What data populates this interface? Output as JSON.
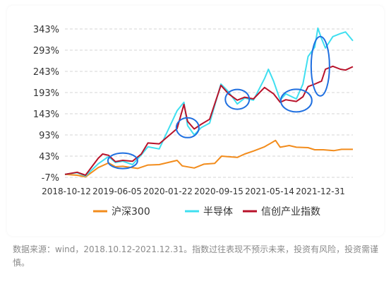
{
  "chart_data": {
    "type": "line",
    "y_ticks": [
      "343%",
      "293%",
      "243%",
      "193%",
      "143%",
      "93%",
      "43%",
      "-7%"
    ],
    "y_values": [
      343,
      293,
      243,
      193,
      143,
      93,
      43,
      -7
    ],
    "ylim": [
      -7,
      343
    ],
    "x_ticks": [
      "2018-10-12",
      "2019-06-05",
      "2020-01-22",
      "2020-09-15",
      "2021-05-14",
      "2021-12-31"
    ],
    "xlim": [
      "2018-10-12",
      "2021-12-31"
    ],
    "grid": "horizontal dashed",
    "legend_position": "bottom",
    "series": [
      {
        "name": "沪深300",
        "color": "#f28c1c",
        "points": [
          [
            "2018-10-12",
            0
          ],
          [
            "2018-12-01",
            -2
          ],
          [
            "2019-01-04",
            -6
          ],
          [
            "2019-02-25",
            16
          ],
          [
            "2019-04-08",
            27
          ],
          [
            "2019-05-06",
            18
          ],
          [
            "2019-06-05",
            19
          ],
          [
            "2019-08-05",
            14
          ],
          [
            "2019-09-16",
            22
          ],
          [
            "2019-11-01",
            23
          ],
          [
            "2020-01-13",
            33
          ],
          [
            "2020-02-03",
            20
          ],
          [
            "2020-03-23",
            15
          ],
          [
            "2020-05-01",
            24
          ],
          [
            "2020-06-15",
            26
          ],
          [
            "2020-07-13",
            43
          ],
          [
            "2020-08-03",
            42
          ],
          [
            "2020-09-15",
            40
          ],
          [
            "2020-10-15",
            48
          ],
          [
            "2020-11-20",
            55
          ],
          [
            "2021-01-04",
            65
          ],
          [
            "2021-02-18",
            80
          ],
          [
            "2021-03-09",
            64
          ],
          [
            "2021-04-15",
            68
          ],
          [
            "2021-05-14",
            64
          ],
          [
            "2021-07-01",
            63
          ],
          [
            "2021-07-28",
            58
          ],
          [
            "2021-09-01",
            58
          ],
          [
            "2021-10-15",
            56
          ],
          [
            "2021-11-15",
            59
          ],
          [
            "2021-12-31",
            59
          ]
        ]
      },
      {
        "name": "半导体",
        "color": "#3fdff0",
        "points": [
          [
            "2018-10-12",
            0
          ],
          [
            "2018-12-01",
            4
          ],
          [
            "2019-01-04",
            -4
          ],
          [
            "2019-02-25",
            25
          ],
          [
            "2019-04-08",
            42
          ],
          [
            "2019-05-06",
            28
          ],
          [
            "2019-06-05",
            31
          ],
          [
            "2019-07-15",
            23
          ],
          [
            "2019-08-20",
            46
          ],
          [
            "2019-09-16",
            65
          ],
          [
            "2019-11-01",
            60
          ],
          [
            "2020-01-13",
            150
          ],
          [
            "2020-02-10",
            170
          ],
          [
            "2020-02-25",
            115
          ],
          [
            "2020-03-23",
            93
          ],
          [
            "2020-04-20",
            110
          ],
          [
            "2020-05-25",
            121
          ],
          [
            "2020-07-10",
            213
          ],
          [
            "2020-08-10",
            195
          ],
          [
            "2020-09-15",
            166
          ],
          [
            "2020-10-15",
            180
          ],
          [
            "2020-11-20",
            175
          ],
          [
            "2021-01-04",
            226
          ],
          [
            "2021-01-20",
            248
          ],
          [
            "2021-02-10",
            220
          ],
          [
            "2021-03-09",
            175
          ],
          [
            "2021-04-01",
            190
          ],
          [
            "2021-05-14",
            178
          ],
          [
            "2021-06-10",
            213
          ],
          [
            "2021-07-01",
            278
          ],
          [
            "2021-07-28",
            300
          ],
          [
            "2021-08-10",
            345
          ],
          [
            "2021-08-25",
            320
          ],
          [
            "2021-09-10",
            298
          ],
          [
            "2021-10-10",
            325
          ],
          [
            "2021-11-10",
            332
          ],
          [
            "2021-12-01",
            336
          ],
          [
            "2021-12-31",
            315
          ]
        ]
      },
      {
        "name": "信创产业指数",
        "color": "#b8122a",
        "points": [
          [
            "2018-10-12",
            0
          ],
          [
            "2018-12-01",
            5
          ],
          [
            "2019-01-04",
            -2
          ],
          [
            "2019-02-25",
            38
          ],
          [
            "2019-03-15",
            48
          ],
          [
            "2019-04-08",
            45
          ],
          [
            "2019-05-06",
            30
          ],
          [
            "2019-06-05",
            33
          ],
          [
            "2019-07-15",
            31
          ],
          [
            "2019-08-20",
            48
          ],
          [
            "2019-09-16",
            74
          ],
          [
            "2019-11-01",
            72
          ],
          [
            "2020-01-13",
            108
          ],
          [
            "2020-02-10",
            165
          ],
          [
            "2020-02-25",
            125
          ],
          [
            "2020-03-23",
            107
          ],
          [
            "2020-04-20",
            118
          ],
          [
            "2020-05-25",
            130
          ],
          [
            "2020-07-10",
            210
          ],
          [
            "2020-08-10",
            190
          ],
          [
            "2020-09-15",
            175
          ],
          [
            "2020-10-15",
            182
          ],
          [
            "2020-11-20",
            178
          ],
          [
            "2021-01-04",
            205
          ],
          [
            "2021-02-10",
            190
          ],
          [
            "2021-03-09",
            170
          ],
          [
            "2021-04-01",
            176
          ],
          [
            "2021-05-14",
            172
          ],
          [
            "2021-06-10",
            183
          ],
          [
            "2021-07-01",
            207
          ],
          [
            "2021-07-28",
            213
          ],
          [
            "2021-08-25",
            220
          ],
          [
            "2021-09-10",
            248
          ],
          [
            "2021-10-10",
            255
          ],
          [
            "2021-11-10",
            248
          ],
          [
            "2021-12-01",
            246
          ],
          [
            "2021-12-31",
            254
          ]
        ]
      }
    ],
    "highlight_color": "#1f6fe0",
    "highlights": [
      {
        "x": "2019-06-05",
        "y": 32
      },
      {
        "x": "2020-02-25",
        "y": 110
      },
      {
        "x": "2020-09-15",
        "y": 177
      },
      {
        "x": "2021-05-14",
        "y": 174
      },
      {
        "x": "2021-08-20",
        "y": 255
      }
    ]
  },
  "source_note": "数据来源：wind，2018.10.12-2021.12.31。指数过往表现不预示未来，投资有风险，投资需谨慎。"
}
